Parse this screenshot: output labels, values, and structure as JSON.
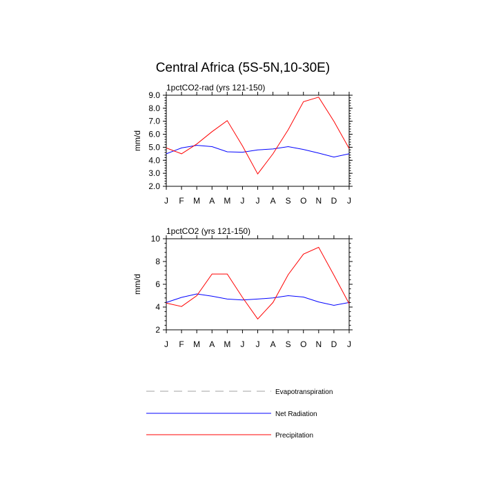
{
  "figure": {
    "title": "Central Africa (5S-5N,10-30E)"
  },
  "chart_data": [
    {
      "type": "line",
      "title": "1pctCO2-rad (yrs 121-150)",
      "xlabel": "",
      "ylabel": "mm/d",
      "categories": [
        "J",
        "F",
        "M",
        "A",
        "M",
        "J",
        "J",
        "A",
        "S",
        "O",
        "N",
        "D",
        "J"
      ],
      "ylim": [
        2.0,
        9.0
      ],
      "yticks": [
        2.0,
        3.0,
        4.0,
        5.0,
        6.0,
        7.0,
        8.0,
        9.0
      ],
      "ytick_labels": [
        "2.0",
        "3.0",
        "4.0",
        "5.0",
        "6.0",
        "7.0",
        "8.0",
        "9.0"
      ],
      "series": [
        {
          "name": "Net Radiation",
          "color": "#0000ff",
          "dash": "solid",
          "values": [
            4.5,
            4.95,
            5.15,
            5.05,
            4.65,
            4.62,
            4.8,
            4.87,
            5.05,
            4.83,
            4.55,
            4.25,
            4.5
          ]
        },
        {
          "name": "Precipitation",
          "color": "#ff0000",
          "dash": "solid",
          "values": [
            4.95,
            4.5,
            5.25,
            6.2,
            7.05,
            5.1,
            2.95,
            4.5,
            6.35,
            8.5,
            8.85,
            7.0,
            4.9
          ]
        }
      ]
    },
    {
      "type": "line",
      "title": "1pctCO2 (yrs 121-150)",
      "xlabel": "",
      "ylabel": "mm/d",
      "categories": [
        "J",
        "F",
        "M",
        "A",
        "M",
        "J",
        "J",
        "A",
        "S",
        "O",
        "N",
        "D",
        "J"
      ],
      "ylim": [
        2,
        10
      ],
      "yticks": [
        2,
        4,
        6,
        8,
        10
      ],
      "ytick_labels": [
        "2",
        "4",
        "6",
        "8",
        "10"
      ],
      "series": [
        {
          "name": "Net Radiation",
          "color": "#0000ff",
          "dash": "solid",
          "values": [
            4.4,
            4.85,
            5.15,
            4.95,
            4.7,
            4.62,
            4.7,
            4.8,
            5.0,
            4.88,
            4.45,
            4.15,
            4.4
          ]
        },
        {
          "name": "Precipitation",
          "color": "#ff0000",
          "dash": "solid",
          "values": [
            4.35,
            4.05,
            5.0,
            6.9,
            6.9,
            4.85,
            2.95,
            4.4,
            6.85,
            8.65,
            9.25,
            6.8,
            4.3
          ]
        }
      ]
    }
  ],
  "legend": {
    "items": [
      {
        "label": "Evapotranspiration",
        "color": "#a0a0a0",
        "dash": "dashed"
      },
      {
        "label": "Net Radiation",
        "color": "#0000ff",
        "dash": "solid"
      },
      {
        "label": "Precipitation",
        "color": "#ff0000",
        "dash": "solid"
      }
    ]
  }
}
